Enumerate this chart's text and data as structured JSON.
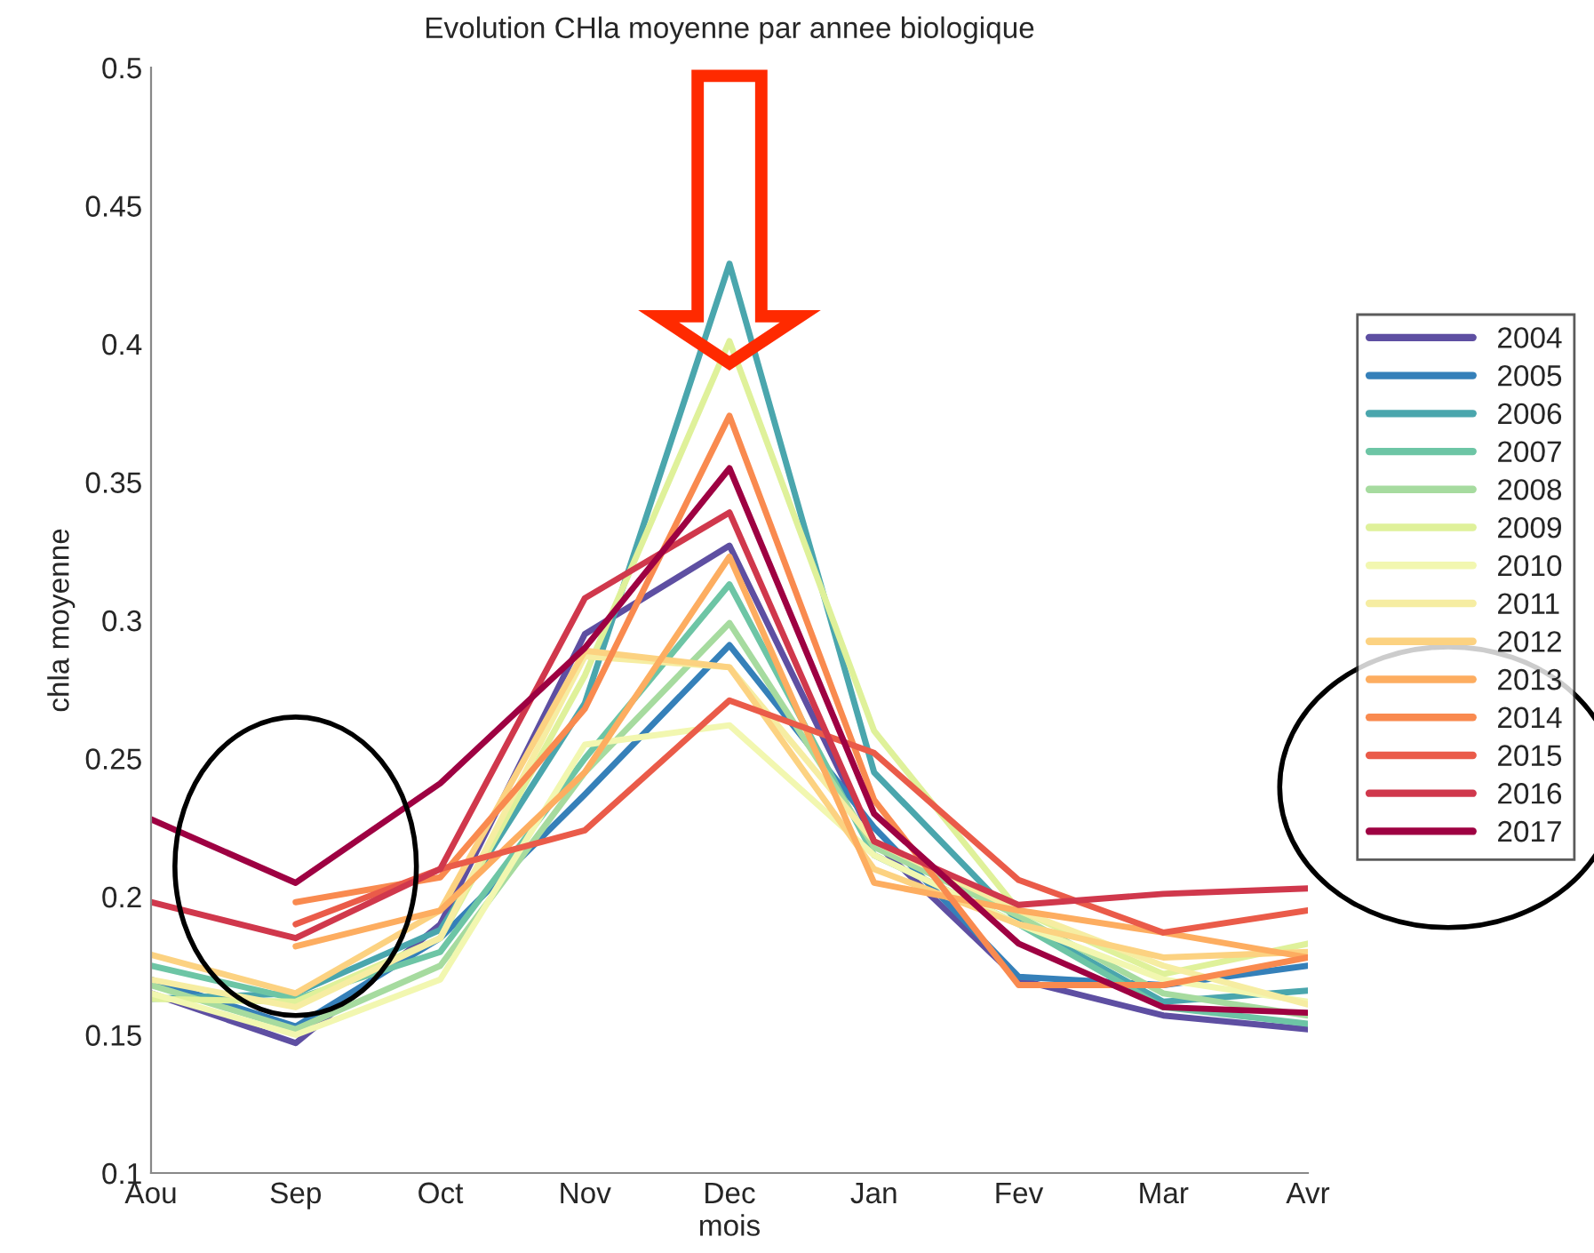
{
  "chart_data": {
    "type": "line",
    "title": "Evolution CHla moyenne par annee biologique",
    "xlabel": "mois",
    "ylabel": "chla moyenne",
    "categories": [
      "Aou",
      "Sep",
      "Oct",
      "Nov",
      "Dec",
      "Jan",
      "Fev",
      "Mar",
      "Avr"
    ],
    "ylim": [
      0.1,
      0.5
    ],
    "yticks": [
      0.1,
      0.15,
      0.2,
      0.25,
      0.3,
      0.35,
      0.4,
      0.45,
      0.5
    ],
    "grid": false,
    "legend": "right",
    "marker": "none",
    "line_style": "solid",
    "series": [
      {
        "name": "2004",
        "color": "#5e4fa2",
        "values": [
          0.165,
          0.147,
          0.19,
          0.295,
          0.327,
          0.22,
          0.17,
          0.157,
          0.152
        ]
      },
      {
        "name": "2005",
        "color": "#3580b9",
        "values": [
          0.17,
          0.153,
          0.185,
          0.237,
          0.291,
          0.225,
          0.171,
          0.168,
          0.175
        ]
      },
      {
        "name": "2006",
        "color": "#4aa6ad",
        "values": [
          0.163,
          0.165,
          0.188,
          0.27,
          0.429,
          0.245,
          0.191,
          0.162,
          0.166
        ]
      },
      {
        "name": "2007",
        "color": "#6dc5a5",
        "values": [
          0.175,
          0.163,
          0.18,
          0.25,
          0.313,
          0.215,
          0.19,
          0.16,
          0.154
        ]
      },
      {
        "name": "2008",
        "color": "#a6db9f",
        "values": [
          0.168,
          0.152,
          0.175,
          0.245,
          0.299,
          0.218,
          0.193,
          0.165,
          0.157
        ]
      },
      {
        "name": "2009",
        "color": "#dff19a",
        "values": [
          0.163,
          0.162,
          0.185,
          0.28,
          0.401,
          0.26,
          0.195,
          0.172,
          0.183
        ]
      },
      {
        "name": "2010",
        "color": "#f2f7b0",
        "values": [
          0.165,
          0.15,
          0.17,
          0.255,
          0.262,
          0.215,
          0.19,
          0.17,
          0.162
        ]
      },
      {
        "name": "2011",
        "color": "#f6eda2",
        "values": [
          0.17,
          0.16,
          0.185,
          0.287,
          0.283,
          0.22,
          0.195,
          0.175,
          0.161
        ]
      },
      {
        "name": "2012",
        "color": "#fcd281",
        "values": [
          0.179,
          0.165,
          0.195,
          0.289,
          0.283,
          0.21,
          0.19,
          0.178,
          0.18
        ]
      },
      {
        "name": "2013",
        "color": "#fdad60",
        "values": [
          null,
          0.182,
          0.195,
          0.245,
          0.323,
          0.205,
          0.195,
          0.187,
          0.178
        ]
      },
      {
        "name": "2014",
        "color": "#f98a4f",
        "values": [
          null,
          0.198,
          0.207,
          0.268,
          0.374,
          0.235,
          0.168,
          0.168,
          0.178
        ]
      },
      {
        "name": "2015",
        "color": "#ea5b49",
        "values": [
          null,
          0.19,
          0.21,
          0.224,
          0.271,
          0.252,
          0.206,
          0.187,
          0.195
        ]
      },
      {
        "name": "2016",
        "color": "#d0384c",
        "values": [
          0.198,
          0.185,
          0.21,
          0.308,
          0.339,
          0.22,
          0.197,
          0.201,
          0.203
        ]
      },
      {
        "name": "2017",
        "color": "#9e0142",
        "values": [
          0.228,
          0.205,
          0.241,
          0.29,
          0.355,
          0.23,
          0.183,
          0.16,
          0.158
        ]
      }
    ]
  }
}
